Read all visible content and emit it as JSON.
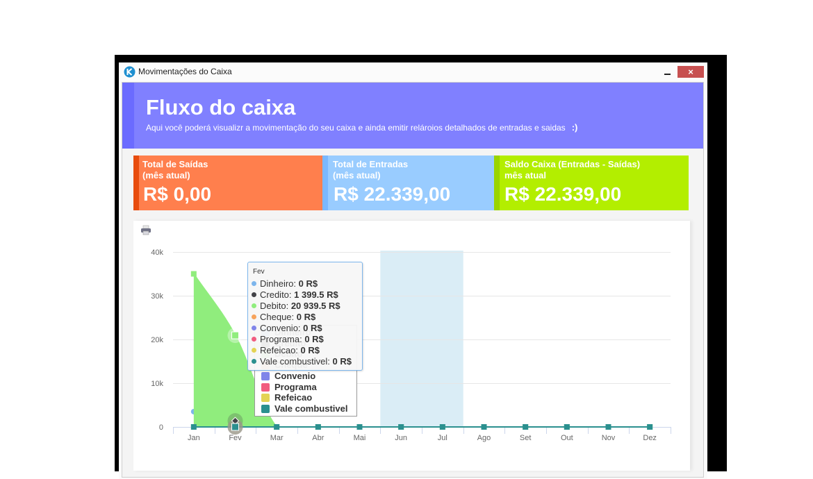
{
  "window": {
    "title": "Movimentações do Caixa",
    "close_label": "×",
    "icon_letter": "K",
    "icon_color": "#1e8fd0"
  },
  "header": {
    "title": "Fluxo do caixa",
    "subtitle": "Aqui você poderá visualizr a movimentação do seu caixa e ainda emitir relároios detalhados de entradas e saidas",
    "emoticon": ":)",
    "color": "#8080ff",
    "accent": "#6b6bff"
  },
  "stats": [
    {
      "label": "Total de Saídas",
      "sublabel": "(mês atual)",
      "value": "R$ 0,00",
      "color": "#ff7f4d",
      "accent": "#e84c0e"
    },
    {
      "label": "Total de Entradas",
      "sublabel": "(mês atual)",
      "value": "R$ 22.339,00",
      "color": "#99ccff",
      "accent": "#7ab8ff"
    },
    {
      "label": "Saldo Caixa (Entradas - Saídas)",
      "sublabel": "mês atual",
      "value": "R$ 22.339,00",
      "color": "#b3ee00",
      "accent": "#9ad400"
    }
  ],
  "chart_toolbar": {
    "print_icon": "printer-icon"
  },
  "chart_data": {
    "type": "area",
    "title": "",
    "xlabel": "",
    "ylabel": "",
    "categories": [
      "Jan",
      "Fev",
      "Mar",
      "Abr",
      "Mai",
      "Jun",
      "Jul",
      "Ago",
      "Set",
      "Out",
      "Nov",
      "Dez"
    ],
    "ylim": [
      0,
      40000
    ],
    "yticks": [
      0,
      10000,
      20000,
      30000,
      40000
    ],
    "ytick_labels": [
      "0",
      "10k",
      "20k",
      "30k",
      "40k"
    ],
    "grid": true,
    "plot_band": {
      "from": "Jun",
      "to": "Jul",
      "color": "#daedf6"
    },
    "hover_category": "Fev",
    "series": [
      {
        "name": "Dinheiro",
        "color": "#7cb5ec",
        "type": "spline",
        "marker": "circle",
        "values": [
          3500,
          0,
          null,
          null,
          null,
          null,
          null,
          null,
          null,
          null,
          null,
          null
        ]
      },
      {
        "name": "Credito",
        "color": "#434348",
        "type": "spline",
        "marker": "diamond",
        "values": [
          null,
          1399.5,
          null,
          null,
          null,
          null,
          null,
          null,
          null,
          null,
          null,
          null
        ]
      },
      {
        "name": "Debito",
        "color": "#90ed7d",
        "type": "areaspline",
        "marker": "square",
        "values": [
          35000,
          20939.5,
          0,
          0,
          0,
          0,
          0,
          0,
          0,
          0,
          0,
          0
        ]
      },
      {
        "name": "Cheque",
        "color": "#f7a35c",
        "type": "spline",
        "marker": "triangle",
        "values": [
          null,
          0,
          null,
          null,
          null,
          null,
          null,
          null,
          null,
          null,
          null,
          null
        ]
      },
      {
        "name": "Convenio",
        "color": "#8085e9",
        "type": "spline",
        "marker": "triangle-down",
        "values": [
          null,
          0,
          null,
          null,
          null,
          null,
          null,
          null,
          null,
          null,
          null,
          null
        ]
      },
      {
        "name": "Programa",
        "color": "#f15c80",
        "type": "spline",
        "marker": "circle",
        "values": [
          null,
          0,
          null,
          null,
          null,
          null,
          null,
          null,
          null,
          null,
          null,
          null
        ]
      },
      {
        "name": "Refeicao",
        "color": "#e4d354",
        "type": "spline",
        "marker": "diamond",
        "values": [
          null,
          0,
          null,
          null,
          null,
          null,
          null,
          null,
          null,
          null,
          null,
          null
        ]
      },
      {
        "name": "Vale combustivel",
        "color": "#2b908f",
        "type": "spline",
        "marker": "square",
        "values": [
          0,
          0,
          0,
          0,
          0,
          0,
          0,
          0,
          0,
          0,
          0,
          0
        ]
      }
    ],
    "legend": {
      "position": "floating, inside plot (partially covered by tooltip)",
      "items": [
        "Dinheiro",
        "Credito",
        "Debito",
        "Cheque",
        "Convenio",
        "Programa",
        "Refeicao",
        "Vale combustivel"
      ]
    },
    "tooltip": {
      "header": "Fev",
      "rows": [
        {
          "name": "Dinheiro",
          "value": "0 R$"
        },
        {
          "name": "Credito",
          "value": "1 399.5 R$"
        },
        {
          "name": "Debito",
          "value": "20 939.5 R$"
        },
        {
          "name": "Cheque",
          "value": "0 R$"
        },
        {
          "name": "Convenio",
          "value": "0 R$"
        },
        {
          "name": "Programa",
          "value": "0 R$"
        },
        {
          "name": "Refeicao",
          "value": "0 R$"
        },
        {
          "name": "Vale combustivel",
          "value": "0 R$"
        }
      ]
    }
  }
}
